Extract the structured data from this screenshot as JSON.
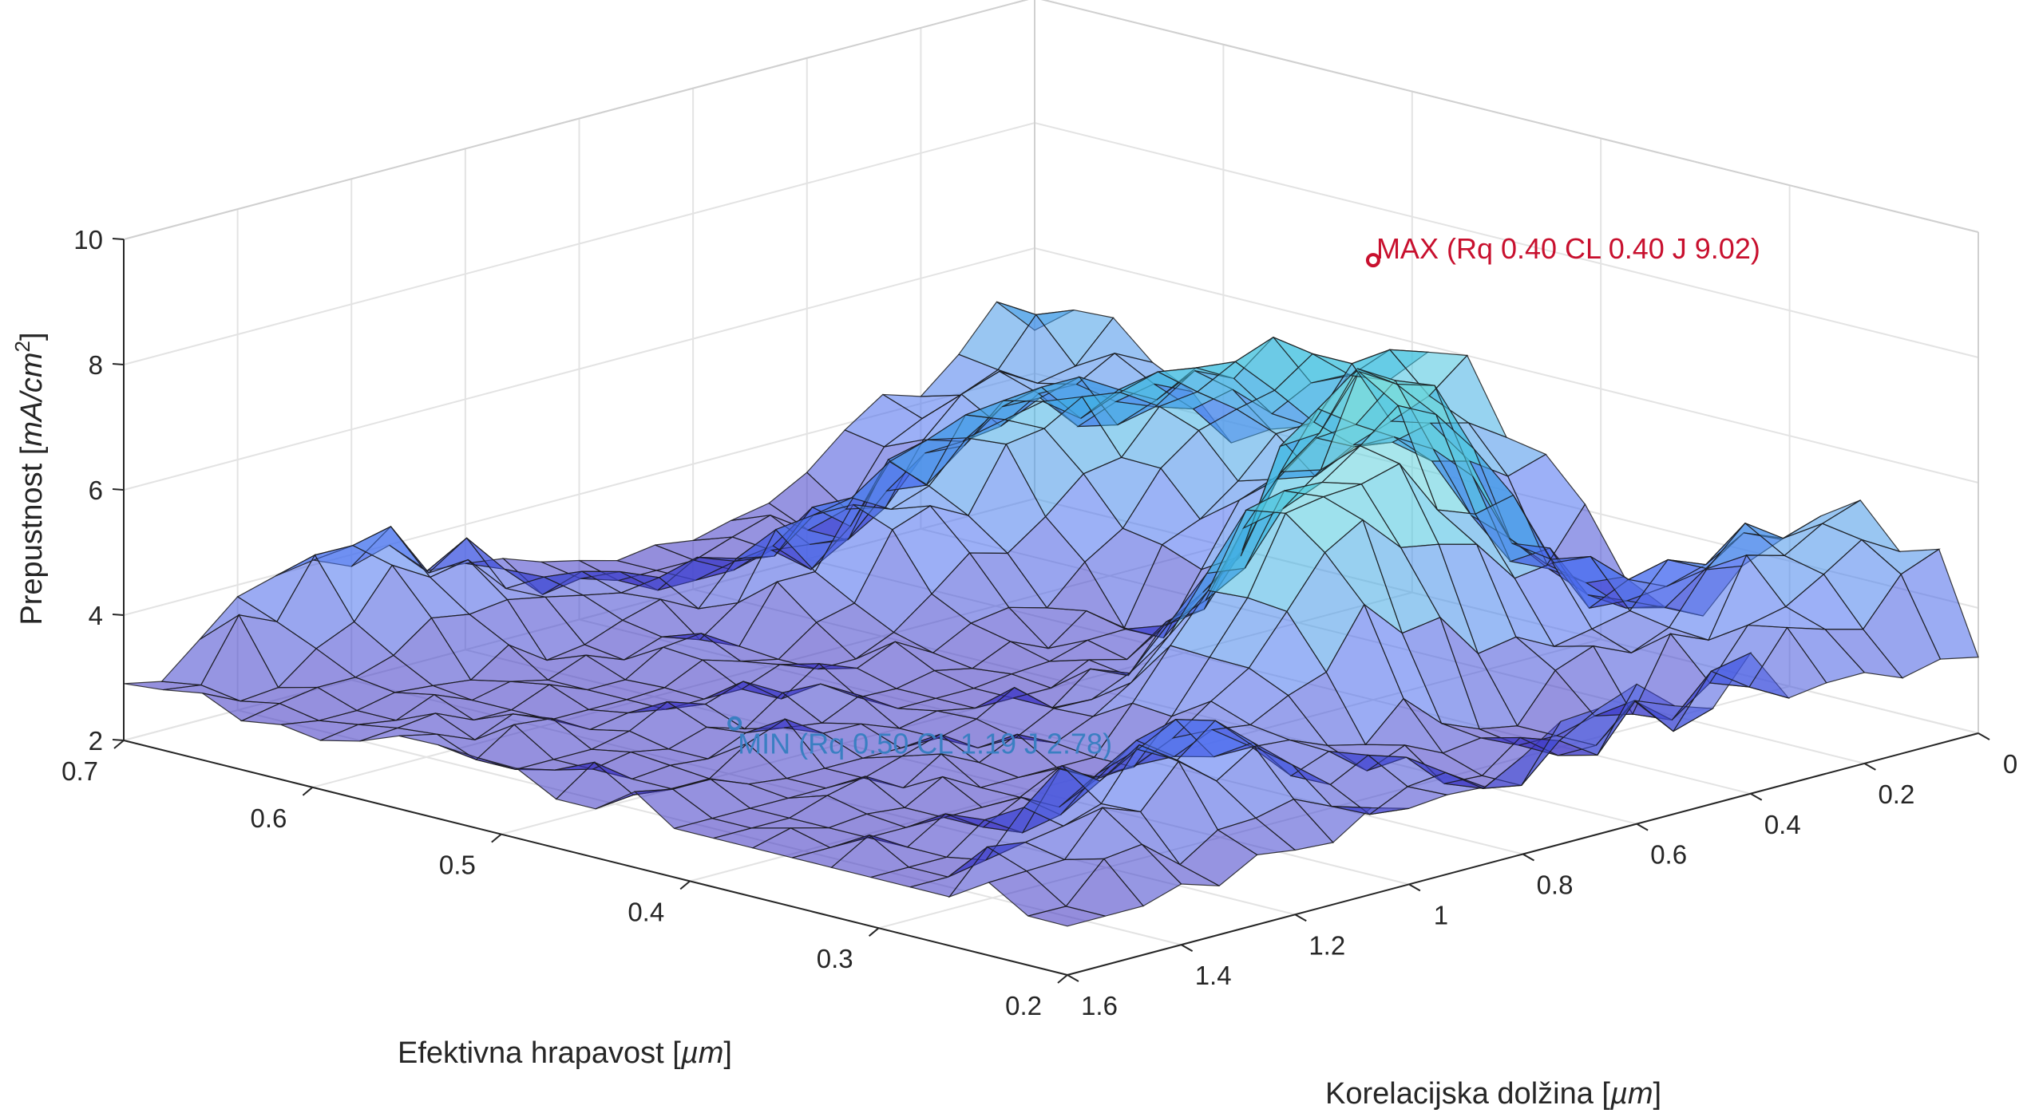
{
  "chart_data": {
    "type": "surface3d",
    "title": "",
    "zlabel": {
      "prefix": "Prepustnost [",
      "unit_italic": "mA/cm",
      "sup": "2",
      "suffix": "]"
    },
    "xlabel": {
      "prefix": "Efektivna hrapavost [",
      "unit_italic": "µm",
      "suffix": "]"
    },
    "ylabel": {
      "prefix": "Korelacijska dolžina [",
      "unit_italic": "µm",
      "suffix": "]"
    },
    "x_axis": {
      "name": "Efektivna hrapavost",
      "range": [
        0.2,
        0.7
      ],
      "ticks": [
        "0.7",
        "0.6",
        "0.5",
        "0.4",
        "0.3",
        "0.2"
      ]
    },
    "y_axis": {
      "name": "Korelacijska dolžina",
      "range": [
        0,
        1.6
      ],
      "ticks": [
        "0",
        "0.2",
        "0.4",
        "0.6",
        "0.8",
        "1",
        "1.2",
        "1.4",
        "1.6"
      ]
    },
    "z_axis": {
      "name": "Prepustnost",
      "range": [
        2,
        10
      ],
      "ticks": [
        "2",
        "4",
        "6",
        "8",
        "10"
      ]
    },
    "colormap": [
      "#3a23b5",
      "#4a6ef0",
      "#40c0e0",
      "#8ce8d6",
      "#f2f23a"
    ],
    "grid": true,
    "annotations": [
      {
        "label": "MAX (Rq 0.40 CL 0.40 J 9.02)",
        "rq": 0.4,
        "cl": 0.4,
        "j": 9.02,
        "color": "#c8102e"
      },
      {
        "label": "MIN (Rq 0.50 CL 1.19 J 2.78)",
        "rq": 0.5,
        "cl": 1.19,
        "j": 2.78,
        "color": "#3a7fc2"
      }
    ]
  }
}
